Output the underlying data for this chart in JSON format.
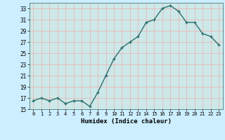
{
  "x": [
    0,
    1,
    2,
    3,
    4,
    5,
    6,
    7,
    8,
    9,
    10,
    11,
    12,
    13,
    14,
    15,
    16,
    17,
    18,
    19,
    20,
    21,
    22,
    23
  ],
  "y": [
    16.5,
    17.0,
    16.5,
    17.0,
    16.0,
    16.5,
    16.5,
    15.5,
    18.0,
    21.0,
    24.0,
    26.0,
    27.0,
    28.0,
    30.5,
    31.0,
    33.0,
    33.5,
    32.5,
    30.5,
    30.5,
    28.5,
    28.0,
    26.5
  ],
  "xlabel": "Humidex (Indice chaleur)",
  "ylim": [
    15,
    34
  ],
  "xlim": [
    -0.5,
    23.5
  ],
  "yticks": [
    15,
    17,
    19,
    21,
    23,
    25,
    27,
    29,
    31,
    33
  ],
  "xticks": [
    0,
    1,
    2,
    3,
    4,
    5,
    6,
    7,
    8,
    9,
    10,
    11,
    12,
    13,
    14,
    15,
    16,
    17,
    18,
    19,
    20,
    21,
    22,
    23
  ],
  "line_color": "#2d6e6e",
  "marker_color": "#2d6e6e",
  "bg_color": "#cceeff",
  "grid_color": "#e8b8b8",
  "plot_bg": "#cce8e8"
}
